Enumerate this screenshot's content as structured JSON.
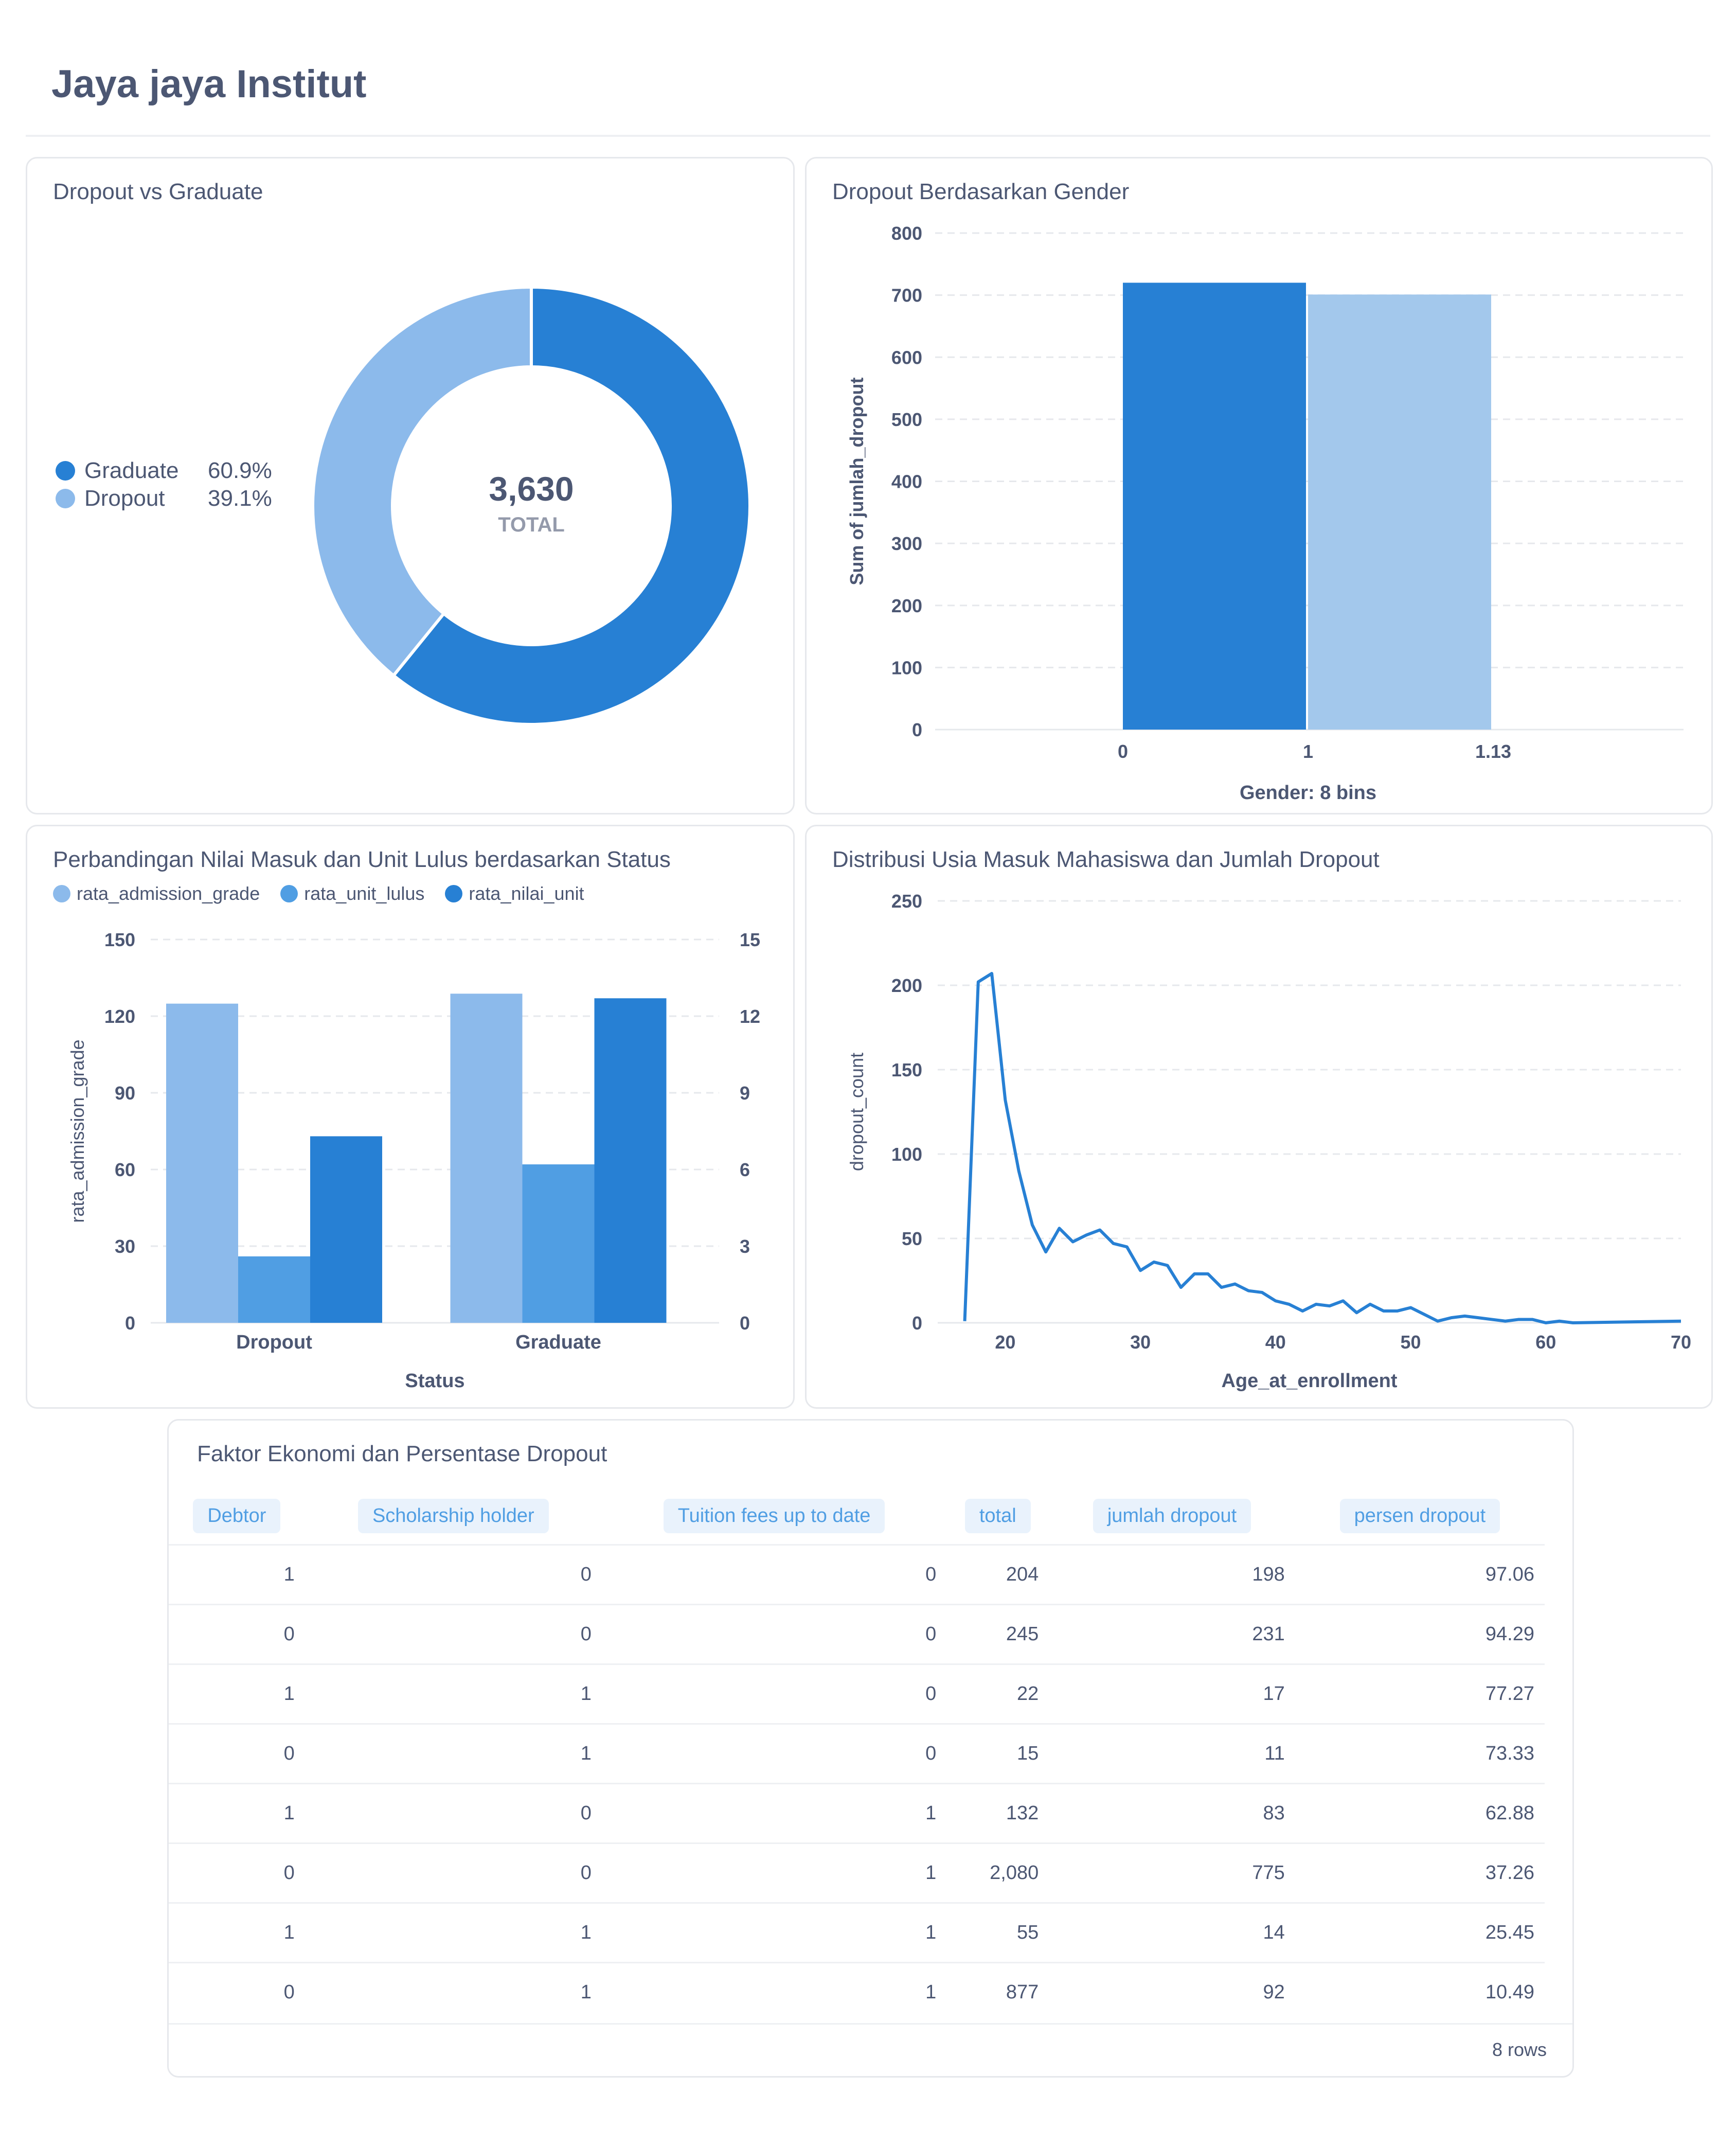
{
  "dashboard": {
    "title": "Jaya jaya Institut"
  },
  "cards": {
    "pie": {
      "title": "Dropout vs Graduate"
    },
    "gender": {
      "title": "Dropout Berdasarkan Gender"
    },
    "comparison": {
      "title": "Perbandingan Nilai Masuk dan Unit Lulus berdasarkan Status"
    },
    "age": {
      "title": "Distribusi Usia Masuk Mahasiswa dan Jumlah Dropout"
    },
    "table": {
      "title": "Faktor Ekonomi dan Persentase Dropout",
      "row_count": "8 rows"
    }
  },
  "chart_data": [
    {
      "id": "pie",
      "type": "pie",
      "title": "Dropout vs Graduate",
      "total_value": "3,630",
      "total_label": "TOTAL",
      "slices": [
        {
          "name": "Graduate",
          "value": 2209,
          "percent": "60.9%",
          "color": "#2780d4"
        },
        {
          "name": "Dropout",
          "value": 1421,
          "percent": "39.1%",
          "color": "#8cbaeb"
        }
      ]
    },
    {
      "id": "gender",
      "type": "bar",
      "title": "Dropout Berdasarkan Gender",
      "xlabel": "Gender: 8 bins",
      "ylabel": "Sum of jumlah_dropout",
      "ylim": [
        0,
        800
      ],
      "yticks": [
        0,
        100,
        200,
        300,
        400,
        500,
        600,
        700,
        800
      ],
      "xticks": [
        "0",
        "1",
        "1.13"
      ],
      "bars": [
        {
          "x0": 0,
          "x1": 1,
          "value": 720,
          "color": "#2780d4"
        },
        {
          "x0": 1,
          "x1": 2,
          "value": 701,
          "color": "#a3c8ec"
        }
      ],
      "grid": true
    },
    {
      "id": "comparison",
      "type": "bar",
      "title": "Perbandingan Nilai Masuk dan Unit Lulus berdasarkan Status",
      "xlabel": "Status",
      "ylabel": "rata_admission_grade",
      "categories": [
        "Dropout",
        "Graduate"
      ],
      "ylim_left": [
        0,
        150
      ],
      "ylim_right": [
        0,
        15
      ],
      "yticks_left": [
        0,
        30,
        60,
        90,
        120,
        150
      ],
      "yticks_right": [
        0,
        3,
        6,
        9,
        12,
        15
      ],
      "legend_position": "top-left",
      "series": [
        {
          "name": "rata_admission_grade",
          "axis": "left",
          "values": [
            124.9,
            128.8
          ],
          "color": "#8cbaeb"
        },
        {
          "name": "rata_unit_lulus",
          "axis": "right",
          "values": [
            2.6,
            6.2
          ],
          "color": "#509ee3"
        },
        {
          "name": "rata_nilai_unit",
          "axis": "right",
          "values": [
            7.3,
            12.7
          ],
          "color": "#2780d4"
        }
      ],
      "grid": true
    },
    {
      "id": "age",
      "type": "line",
      "title": "Distribusi Usia Masuk Mahasiswa dan Jumlah Dropout",
      "xlabel": "Age_at_enrollment",
      "ylabel": "dropout_count",
      "xlim": [
        15,
        70
      ],
      "ylim": [
        0,
        250
      ],
      "xticks": [
        20,
        30,
        40,
        50,
        60,
        70
      ],
      "yticks": [
        0,
        50,
        100,
        150,
        200,
        250
      ],
      "color": "#2780d4",
      "x": [
        17,
        18,
        19,
        20,
        21,
        22,
        23,
        24,
        25,
        26,
        27,
        28,
        29,
        30,
        31,
        32,
        33,
        34,
        35,
        36,
        37,
        38,
        39,
        40,
        41,
        42,
        43,
        44,
        45,
        46,
        47,
        48,
        49,
        50,
        51,
        52,
        53,
        54,
        55,
        56,
        57,
        58,
        59,
        60,
        61,
        62,
        70
      ],
      "y": [
        1,
        202,
        207,
        132,
        90,
        58,
        42,
        56,
        48,
        52,
        55,
        47,
        45,
        31,
        36,
        34,
        21,
        29,
        29,
        21,
        23,
        19,
        18,
        13,
        11,
        7,
        11,
        10,
        13,
        6,
        11,
        7,
        7,
        9,
        5,
        1,
        3,
        4,
        3,
        2,
        1,
        2,
        2,
        0,
        1,
        0,
        1
      ],
      "grid": true
    },
    {
      "id": "table",
      "type": "table",
      "title": "Faktor Ekonomi dan Persentase Dropout",
      "columns": [
        "Debtor",
        "Scholarship holder",
        "Tuition fees up to date",
        "total",
        "jumlah dropout",
        "persen dropout"
      ],
      "rows": [
        [
          "1",
          "0",
          "0",
          "204",
          "198",
          "97.06"
        ],
        [
          "0",
          "0",
          "0",
          "245",
          "231",
          "94.29"
        ],
        [
          "1",
          "1",
          "0",
          "22",
          "17",
          "77.27"
        ],
        [
          "0",
          "1",
          "0",
          "15",
          "11",
          "73.33"
        ],
        [
          "1",
          "0",
          "1",
          "132",
          "83",
          "62.88"
        ],
        [
          "0",
          "0",
          "1",
          "2,080",
          "775",
          "37.26"
        ],
        [
          "1",
          "1",
          "1",
          "55",
          "14",
          "25.45"
        ],
        [
          "0",
          "1",
          "1",
          "877",
          "92",
          "10.49"
        ]
      ]
    }
  ]
}
